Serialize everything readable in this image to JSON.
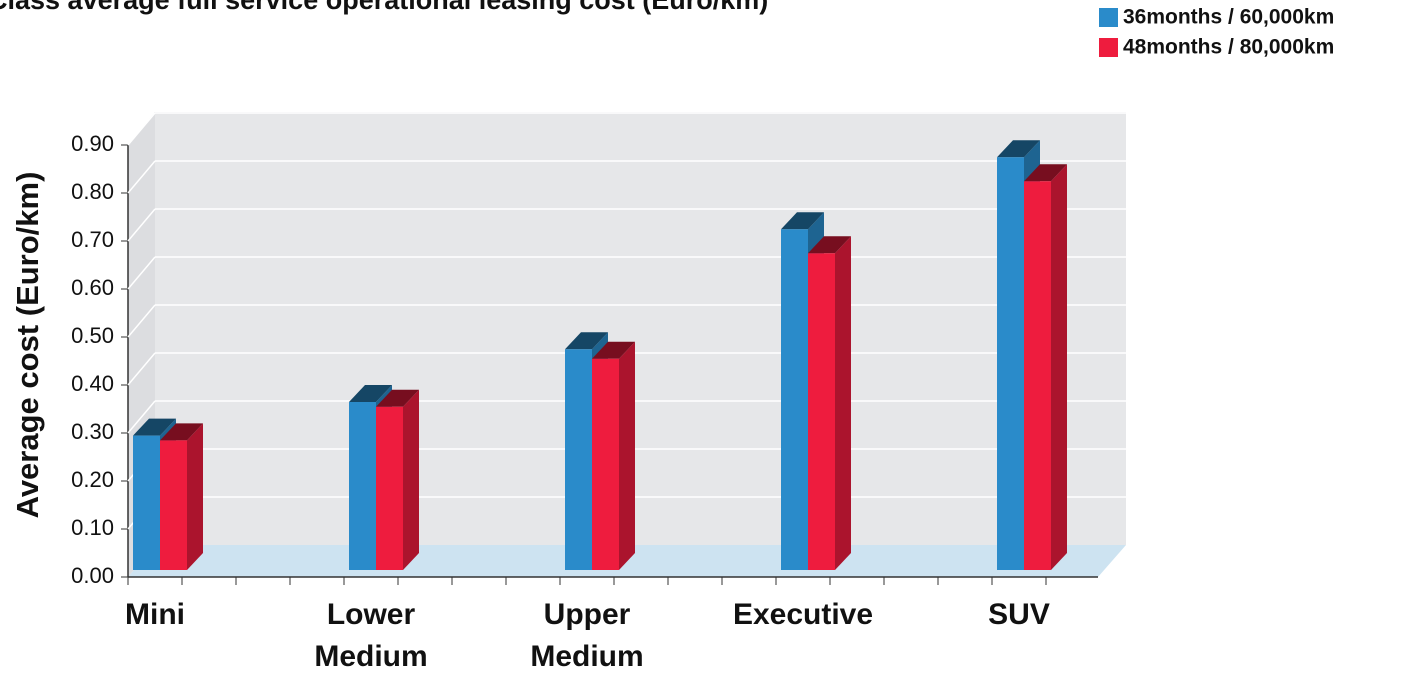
{
  "chart_data": {
    "type": "bar3d",
    "title": "Class average full service operational leasing cost (Euro/km)",
    "ylabel": "Average cost (Euro/km)",
    "categories": [
      "Mini",
      "Lower Medium",
      "Upper Medium",
      "Executive",
      "SUV"
    ],
    "series": [
      {
        "name": "36months / 60,000km",
        "color": "#2a8bca",
        "values": [
          0.28,
          0.35,
          0.46,
          0.71,
          0.86
        ]
      },
      {
        "name": "48months / 80,000km",
        "color": "#ee1c3e",
        "values": [
          0.27,
          0.34,
          0.44,
          0.66,
          0.81
        ]
      }
    ],
    "ylim": [
      0,
      0.9
    ],
    "yticks": [
      {
        "value": 0,
        "label": "0.00"
      },
      {
        "value": 0.1,
        "label": "0.10"
      },
      {
        "value": 0.2,
        "label": "0.20"
      },
      {
        "value": 0.3,
        "label": "0.30"
      },
      {
        "value": 0.4,
        "label": "0.40"
      },
      {
        "value": 0.5,
        "label": "0.50"
      },
      {
        "value": 0.6,
        "label": "0.60"
      },
      {
        "value": 0.7,
        "label": "0.70"
      },
      {
        "value": 0.8,
        "label": "0.80"
      },
      {
        "value": 0.9,
        "label": "0.90"
      }
    ],
    "grid": true,
    "legend": "top-right"
  }
}
